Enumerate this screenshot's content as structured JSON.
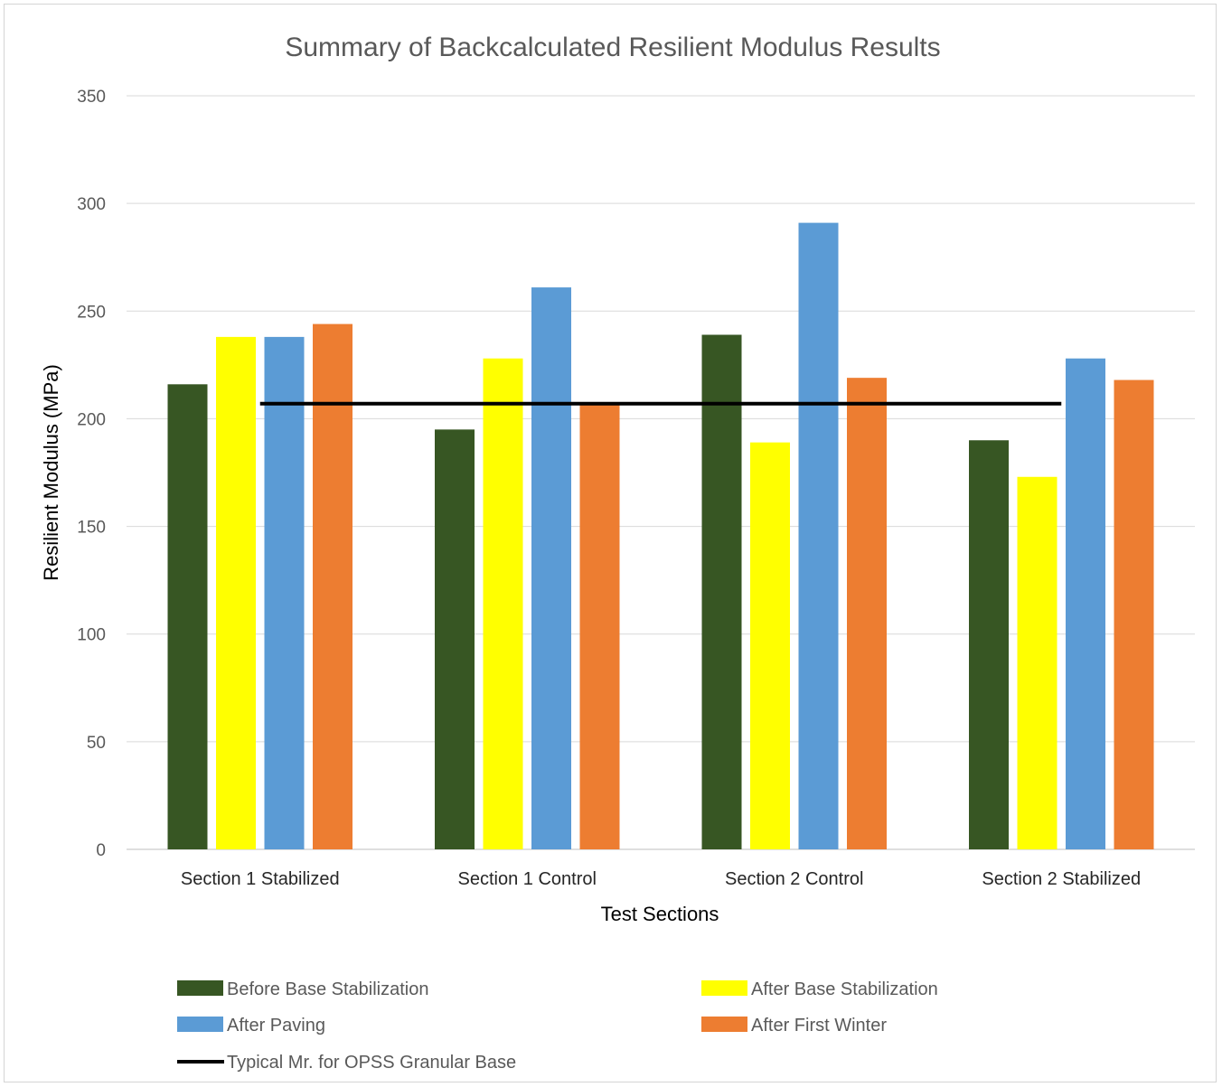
{
  "chart_data": {
    "type": "bar",
    "title": "Summary of Backcalculated Resilient Modulus Results",
    "xlabel": "Test Sections",
    "ylabel": "Resilient Modulus (MPa)",
    "ylim": [
      0,
      350
    ],
    "yticks": [
      0,
      50,
      100,
      150,
      200,
      250,
      300,
      350
    ],
    "grid": true,
    "legend_position": "bottom",
    "categories": [
      "Section 1 Stabilized",
      "Section 1 Control",
      "Section 2 Control",
      "Section 2 Stabilized"
    ],
    "series": [
      {
        "name": "Before Base Stabilization",
        "color": "#375623",
        "values": [
          216,
          195,
          239,
          190
        ]
      },
      {
        "name": "After Base Stabilization",
        "color": "#ffff00",
        "values": [
          238,
          228,
          189,
          173
        ]
      },
      {
        "name": "After Paving",
        "color": "#5b9bd5",
        "values": [
          238,
          261,
          291,
          228
        ]
      },
      {
        "name": "After First Winter",
        "color": "#ed7d31",
        "values": [
          244,
          207,
          219,
          218
        ]
      }
    ],
    "reference_line": {
      "name": "Typical Mr. for OPSS Granular Base",
      "color": "#000000",
      "value": 207
    }
  }
}
